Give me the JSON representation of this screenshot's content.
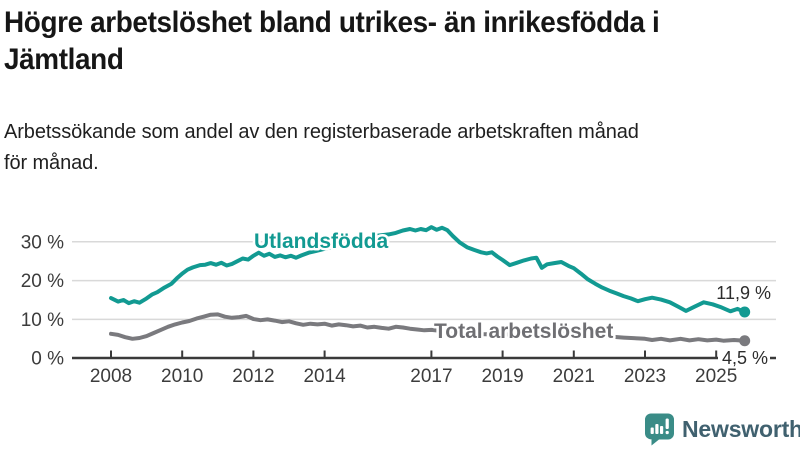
{
  "header": {
    "title_lines": [
      "Högre arbetslöshet bland utrikes- än inrikesfödda i",
      "Jämtland"
    ],
    "subtitle_lines": [
      "Arbetssökande som andel av den registerbaserade arbetskraften månad",
      "för månad."
    ]
  },
  "colors": {
    "accent_teal": "#129a92",
    "line_gray": "#7a7a7e",
    "label_gray": "#6f6f73",
    "grid": "#d9d9d9",
    "axis": "#3a3a3a",
    "tick_text": "#3c3c3c"
  },
  "chart_data": {
    "type": "line",
    "grid": "horizontal",
    "legend_position": "inline-labels",
    "xlim": [
      2006.9,
      2026.7
    ],
    "ylim": [
      0,
      37
    ],
    "x_ticks": [
      {
        "v": 2008,
        "label": "2008"
      },
      {
        "v": 2010,
        "label": "2010"
      },
      {
        "v": 2012,
        "label": "2012"
      },
      {
        "v": 2014,
        "label": "2014"
      },
      {
        "v": 2017,
        "label": "2017"
      },
      {
        "v": 2019,
        "label": "2019"
      },
      {
        "v": 2021,
        "label": "2021"
      },
      {
        "v": 2023,
        "label": "2023"
      },
      {
        "v": 2025,
        "label": "2025"
      }
    ],
    "y_ticks": [
      {
        "v": 0,
        "label": "0 %"
      },
      {
        "v": 10,
        "label": "10 %"
      },
      {
        "v": 20,
        "label": "20 %"
      },
      {
        "v": 30,
        "label": "30 %"
      }
    ],
    "series": [
      {
        "name": "Utlandsfödda",
        "color": "#129a92",
        "end_label": "11,9 %",
        "end_value": 11.9,
        "points": [
          [
            2008.0,
            15.5
          ],
          [
            2008.2,
            14.6
          ],
          [
            2008.35,
            15.0
          ],
          [
            2008.5,
            14.2
          ],
          [
            2008.65,
            14.7
          ],
          [
            2008.8,
            14.3
          ],
          [
            2009.0,
            15.4
          ],
          [
            2009.15,
            16.4
          ],
          [
            2009.3,
            17.0
          ],
          [
            2009.5,
            18.2
          ],
          [
            2009.7,
            19.2
          ],
          [
            2009.85,
            20.6
          ],
          [
            2010.0,
            21.8
          ],
          [
            2010.15,
            22.8
          ],
          [
            2010.3,
            23.4
          ],
          [
            2010.5,
            24.0
          ],
          [
            2010.65,
            24.1
          ],
          [
            2010.8,
            24.5
          ],
          [
            2010.95,
            24.1
          ],
          [
            2011.1,
            24.6
          ],
          [
            2011.25,
            23.9
          ],
          [
            2011.4,
            24.3
          ],
          [
            2011.55,
            25.0
          ],
          [
            2011.7,
            25.7
          ],
          [
            2011.85,
            25.4
          ],
          [
            2012.0,
            26.4
          ],
          [
            2012.15,
            27.2
          ],
          [
            2012.3,
            26.4
          ],
          [
            2012.45,
            26.9
          ],
          [
            2012.6,
            26.1
          ],
          [
            2012.75,
            26.5
          ],
          [
            2012.9,
            26.0
          ],
          [
            2013.05,
            26.4
          ],
          [
            2013.2,
            25.9
          ],
          [
            2013.35,
            26.5
          ],
          [
            2013.55,
            27.2
          ],
          [
            2013.75,
            27.6
          ],
          [
            2014.0,
            28.2
          ],
          [
            2014.3,
            28.9
          ],
          [
            2014.6,
            29.6
          ],
          [
            2014.9,
            30.3
          ],
          [
            2015.2,
            31.0
          ],
          [
            2015.5,
            31.6
          ],
          [
            2015.8,
            31.9
          ],
          [
            2016.0,
            32.3
          ],
          [
            2016.2,
            32.9
          ],
          [
            2016.4,
            33.3
          ],
          [
            2016.55,
            32.9
          ],
          [
            2016.7,
            33.3
          ],
          [
            2016.85,
            33.0
          ],
          [
            2017.0,
            33.8
          ],
          [
            2017.15,
            33.1
          ],
          [
            2017.3,
            33.6
          ],
          [
            2017.45,
            33.0
          ],
          [
            2017.6,
            31.5
          ],
          [
            2017.8,
            29.8
          ],
          [
            2018.0,
            28.6
          ],
          [
            2018.2,
            27.9
          ],
          [
            2018.4,
            27.3
          ],
          [
            2018.55,
            27.0
          ],
          [
            2018.7,
            27.3
          ],
          [
            2018.85,
            26.2
          ],
          [
            2019.0,
            25.3
          ],
          [
            2019.2,
            24.0
          ],
          [
            2019.4,
            24.6
          ],
          [
            2019.6,
            25.2
          ],
          [
            2019.8,
            25.7
          ],
          [
            2019.95,
            25.9
          ],
          [
            2020.1,
            23.3
          ],
          [
            2020.25,
            24.2
          ],
          [
            2020.45,
            24.5
          ],
          [
            2020.65,
            24.8
          ],
          [
            2020.85,
            23.8
          ],
          [
            2021.0,
            23.2
          ],
          [
            2021.2,
            21.8
          ],
          [
            2021.4,
            20.3
          ],
          [
            2021.6,
            19.2
          ],
          [
            2021.8,
            18.2
          ],
          [
            2022.0,
            17.4
          ],
          [
            2022.2,
            16.7
          ],
          [
            2022.4,
            16.0
          ],
          [
            2022.6,
            15.4
          ],
          [
            2022.8,
            14.7
          ],
          [
            2023.0,
            15.2
          ],
          [
            2023.2,
            15.6
          ],
          [
            2023.45,
            15.1
          ],
          [
            2023.7,
            14.4
          ],
          [
            2023.95,
            13.2
          ],
          [
            2024.15,
            12.2
          ],
          [
            2024.4,
            13.3
          ],
          [
            2024.65,
            14.4
          ],
          [
            2024.9,
            13.9
          ],
          [
            2025.15,
            13.1
          ],
          [
            2025.4,
            12.1
          ],
          [
            2025.6,
            12.7
          ],
          [
            2025.8,
            11.9
          ]
        ]
      },
      {
        "name": "Total arbetslöshet",
        "color": "#7a7a7e",
        "label_color": "#6f6f73",
        "end_label": "4,5 %",
        "end_value": 4.5,
        "points": [
          [
            2008.0,
            6.3
          ],
          [
            2008.2,
            6.0
          ],
          [
            2008.4,
            5.4
          ],
          [
            2008.6,
            5.0
          ],
          [
            2008.8,
            5.2
          ],
          [
            2009.0,
            5.7
          ],
          [
            2009.2,
            6.5
          ],
          [
            2009.4,
            7.3
          ],
          [
            2009.6,
            8.1
          ],
          [
            2009.8,
            8.7
          ],
          [
            2010.0,
            9.2
          ],
          [
            2010.2,
            9.6
          ],
          [
            2010.4,
            10.2
          ],
          [
            2010.6,
            10.7
          ],
          [
            2010.8,
            11.2
          ],
          [
            2011.0,
            11.3
          ],
          [
            2011.2,
            10.7
          ],
          [
            2011.4,
            10.4
          ],
          [
            2011.6,
            10.6
          ],
          [
            2011.8,
            10.9
          ],
          [
            2012.0,
            10.1
          ],
          [
            2012.2,
            9.8
          ],
          [
            2012.4,
            10.0
          ],
          [
            2012.6,
            9.7
          ],
          [
            2012.8,
            9.3
          ],
          [
            2013.0,
            9.5
          ],
          [
            2013.2,
            9.0
          ],
          [
            2013.4,
            8.6
          ],
          [
            2013.6,
            8.9
          ],
          [
            2013.8,
            8.7
          ],
          [
            2014.0,
            8.9
          ],
          [
            2014.2,
            8.4
          ],
          [
            2014.4,
            8.7
          ],
          [
            2014.6,
            8.5
          ],
          [
            2014.8,
            8.2
          ],
          [
            2015.0,
            8.4
          ],
          [
            2015.2,
            7.9
          ],
          [
            2015.4,
            8.1
          ],
          [
            2015.6,
            7.8
          ],
          [
            2015.8,
            7.6
          ],
          [
            2016.0,
            8.1
          ],
          [
            2016.2,
            7.9
          ],
          [
            2016.4,
            7.6
          ],
          [
            2016.6,
            7.4
          ],
          [
            2016.8,
            7.2
          ],
          [
            2017.0,
            7.3
          ],
          [
            2017.3,
            7.0
          ],
          [
            2017.6,
            6.7
          ],
          [
            2018.0,
            6.5
          ],
          [
            2018.4,
            6.2
          ],
          [
            2018.8,
            6.1
          ],
          [
            2019.2,
            6.1
          ],
          [
            2019.6,
            6.3
          ],
          [
            2020.0,
            6.9
          ],
          [
            2020.4,
            7.2
          ],
          [
            2020.8,
            6.9
          ],
          [
            2021.2,
            6.5
          ],
          [
            2021.6,
            6.0
          ],
          [
            2022.0,
            5.6
          ],
          [
            2022.4,
            5.3
          ],
          [
            2022.8,
            5.1
          ],
          [
            2023.0,
            5.0
          ],
          [
            2023.2,
            4.7
          ],
          [
            2023.45,
            5.0
          ],
          [
            2023.7,
            4.6
          ],
          [
            2024.0,
            5.0
          ],
          [
            2024.25,
            4.6
          ],
          [
            2024.5,
            4.9
          ],
          [
            2024.75,
            4.6
          ],
          [
            2025.0,
            4.8
          ],
          [
            2025.2,
            4.5
          ],
          [
            2025.5,
            4.7
          ],
          [
            2025.8,
            4.5
          ]
        ]
      }
    ]
  },
  "branding": {
    "name": "Newsworthy",
    "icon_color": "#3a8c87",
    "text_color": "#40616f"
  }
}
